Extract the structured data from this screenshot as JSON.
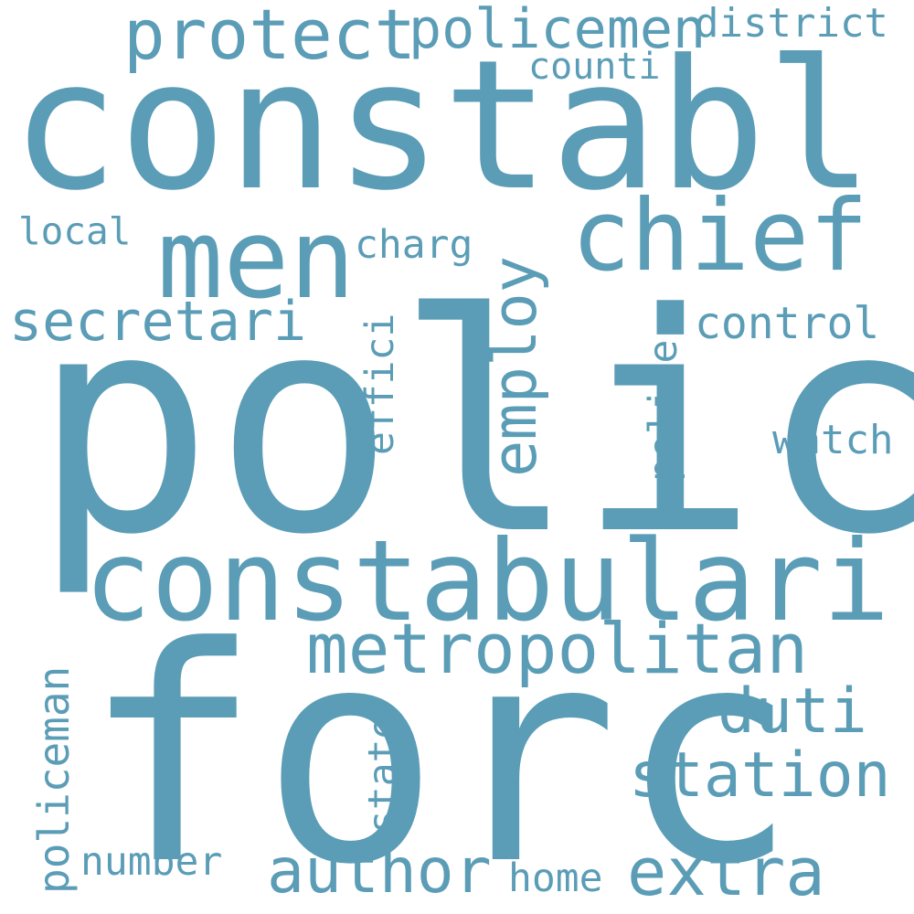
{
  "accent_color": "#5b9db6",
  "words": [
    "polic",
    "forc",
    "constabl",
    "constabulari",
    "men",
    "chief",
    "metropolitan",
    "protect",
    "policemen",
    "district",
    "counti",
    "employ",
    "secretari",
    "control",
    "local",
    "charg",
    "effici",
    "police",
    "watch",
    "duti",
    "station",
    "policeman",
    "state",
    "author",
    "extra",
    "number",
    "home"
  ]
}
